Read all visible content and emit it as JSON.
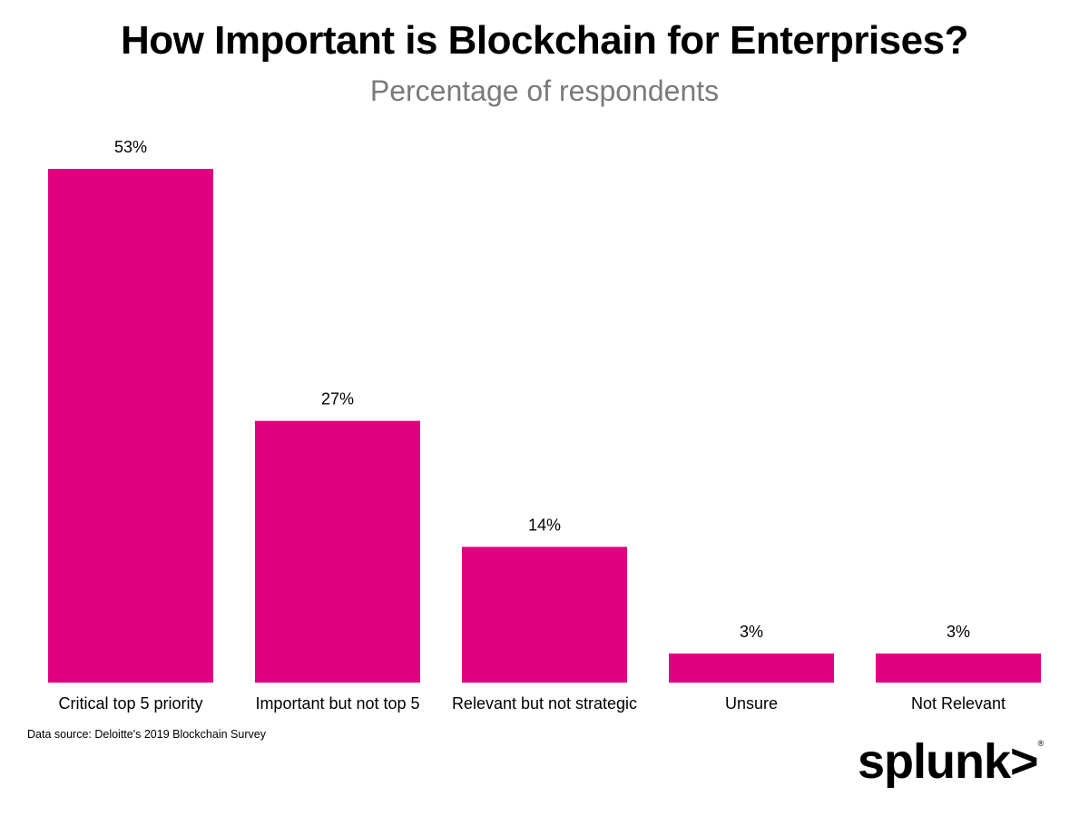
{
  "chart_data": {
    "type": "bar",
    "title": "How Important is Blockchain for Enterprises?",
    "subtitle": "Percentage of respondents",
    "categories": [
      "Critical top 5 priority",
      "Important but not top 5",
      "Relevant but not strategic",
      "Unsure",
      "Not Relevant"
    ],
    "values": [
      53,
      27,
      14,
      3,
      3
    ],
    "data_labels": [
      "53%",
      "27%",
      "14%",
      "3%",
      "3%"
    ],
    "ylim": [
      0,
      53
    ],
    "grid": false,
    "bar_color": "#e0007f",
    "source": "Data source: Deloitte's 2019 Blockchain Survey"
  },
  "logo": {
    "text": "splunk>"
  }
}
